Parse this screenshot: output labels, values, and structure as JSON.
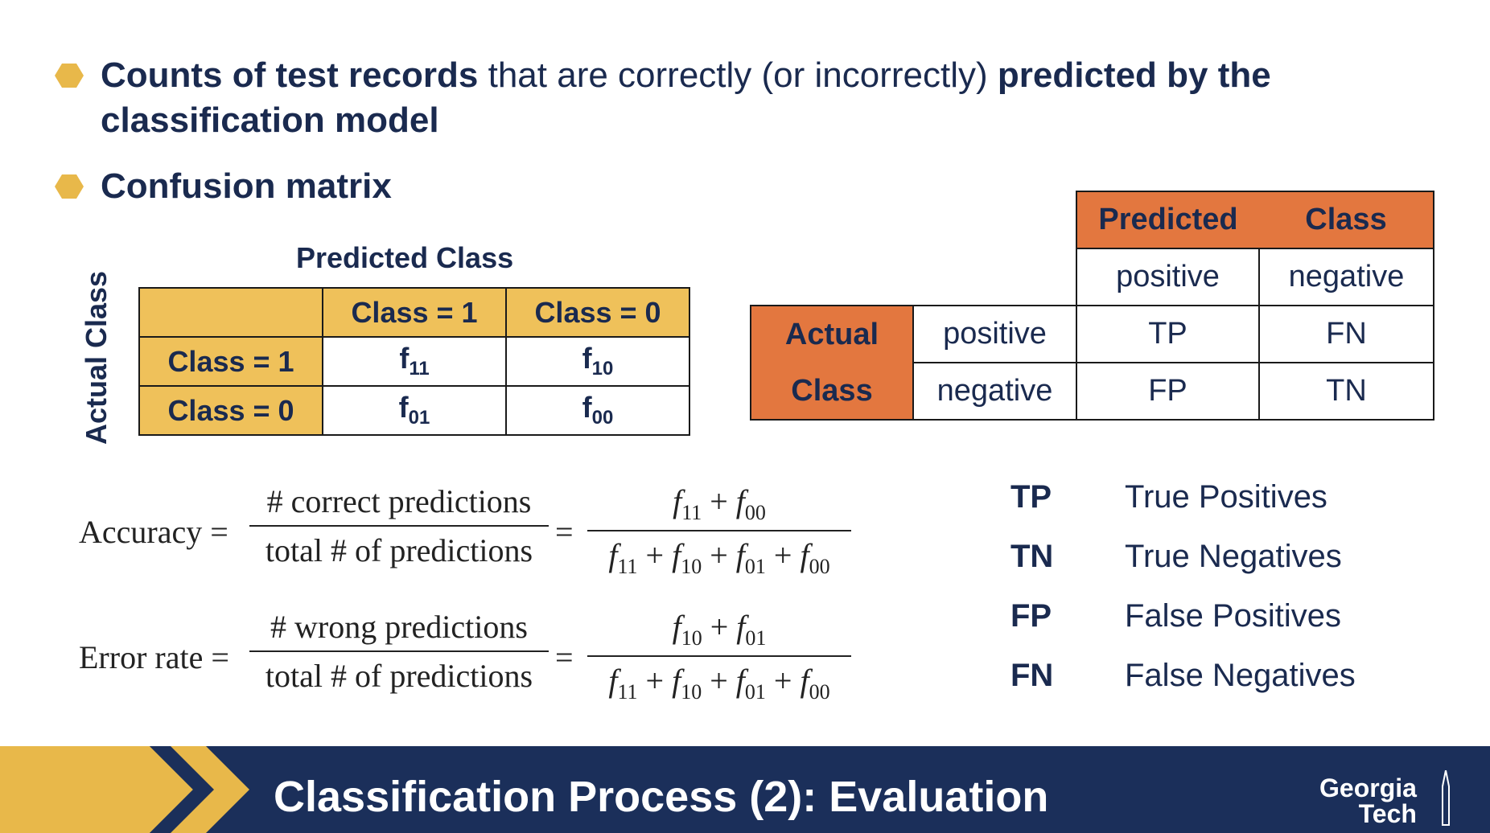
{
  "bullets": [
    {
      "parts": [
        {
          "text": "Counts of test records",
          "bold": true
        },
        {
          "text": " that are correctly (or incorrectly) ",
          "bold": false
        },
        {
          "text": "predicted by the classification model",
          "bold": true
        }
      ]
    },
    {
      "parts": [
        {
          "text": "Confusion matrix",
          "bold": true
        }
      ]
    }
  ],
  "matrix1": {
    "col_title": "Predicted Class",
    "row_title": "Actual Class",
    "header": [
      "",
      "Class = 1",
      "Class = 0"
    ],
    "rows": [
      {
        "label": "Class = 1",
        "cells": [
          {
            "base": "f",
            "sub": "11"
          },
          {
            "base": "f",
            "sub": "10"
          }
        ]
      },
      {
        "label": "Class = 0",
        "cells": [
          {
            "base": "f",
            "sub": "01"
          },
          {
            "base": "f",
            "sub": "00"
          }
        ]
      }
    ]
  },
  "matrix2": {
    "predicted": "Predicted",
    "class": "Class",
    "actual": "Actual",
    "actual_class": "Class",
    "col_labels": [
      "positive",
      "negative"
    ],
    "rows": [
      {
        "label": "positive",
        "cells": [
          "TP",
          "FN"
        ]
      },
      {
        "label": "negative",
        "cells": [
          "FP",
          "TN"
        ]
      }
    ]
  },
  "formulas": {
    "accuracy": {
      "lhs": "Accuracy",
      "eq": "=",
      "num1": "# correct predictions",
      "den1": "total # of predictions",
      "num2": [
        "11",
        "00"
      ],
      "den2": [
        "11",
        "10",
        "01",
        "00"
      ]
    },
    "error": {
      "lhs": "Error rate",
      "eq": "=",
      "num1": "# wrong predictions",
      "den1": "total # of predictions",
      "num2": [
        "10",
        "01"
      ],
      "den2": [
        "11",
        "10",
        "01",
        "00"
      ]
    }
  },
  "legend": [
    {
      "abbr": "TP",
      "full": "True Positives"
    },
    {
      "abbr": "TN",
      "full": "True Negatives"
    },
    {
      "abbr": "FP",
      "full": "False Positives"
    },
    {
      "abbr": "FN",
      "full": "False Negatives"
    }
  ],
  "footer": {
    "title": "Classification Process (2): Evaluation",
    "logo_line1": "Georgia",
    "logo_line2": "Tech"
  },
  "colors": {
    "navy": "#1b2f5a",
    "gold": "#e8b84a",
    "matrix_yellow": "#efc15a",
    "matrix_orange": "#e3773f"
  }
}
